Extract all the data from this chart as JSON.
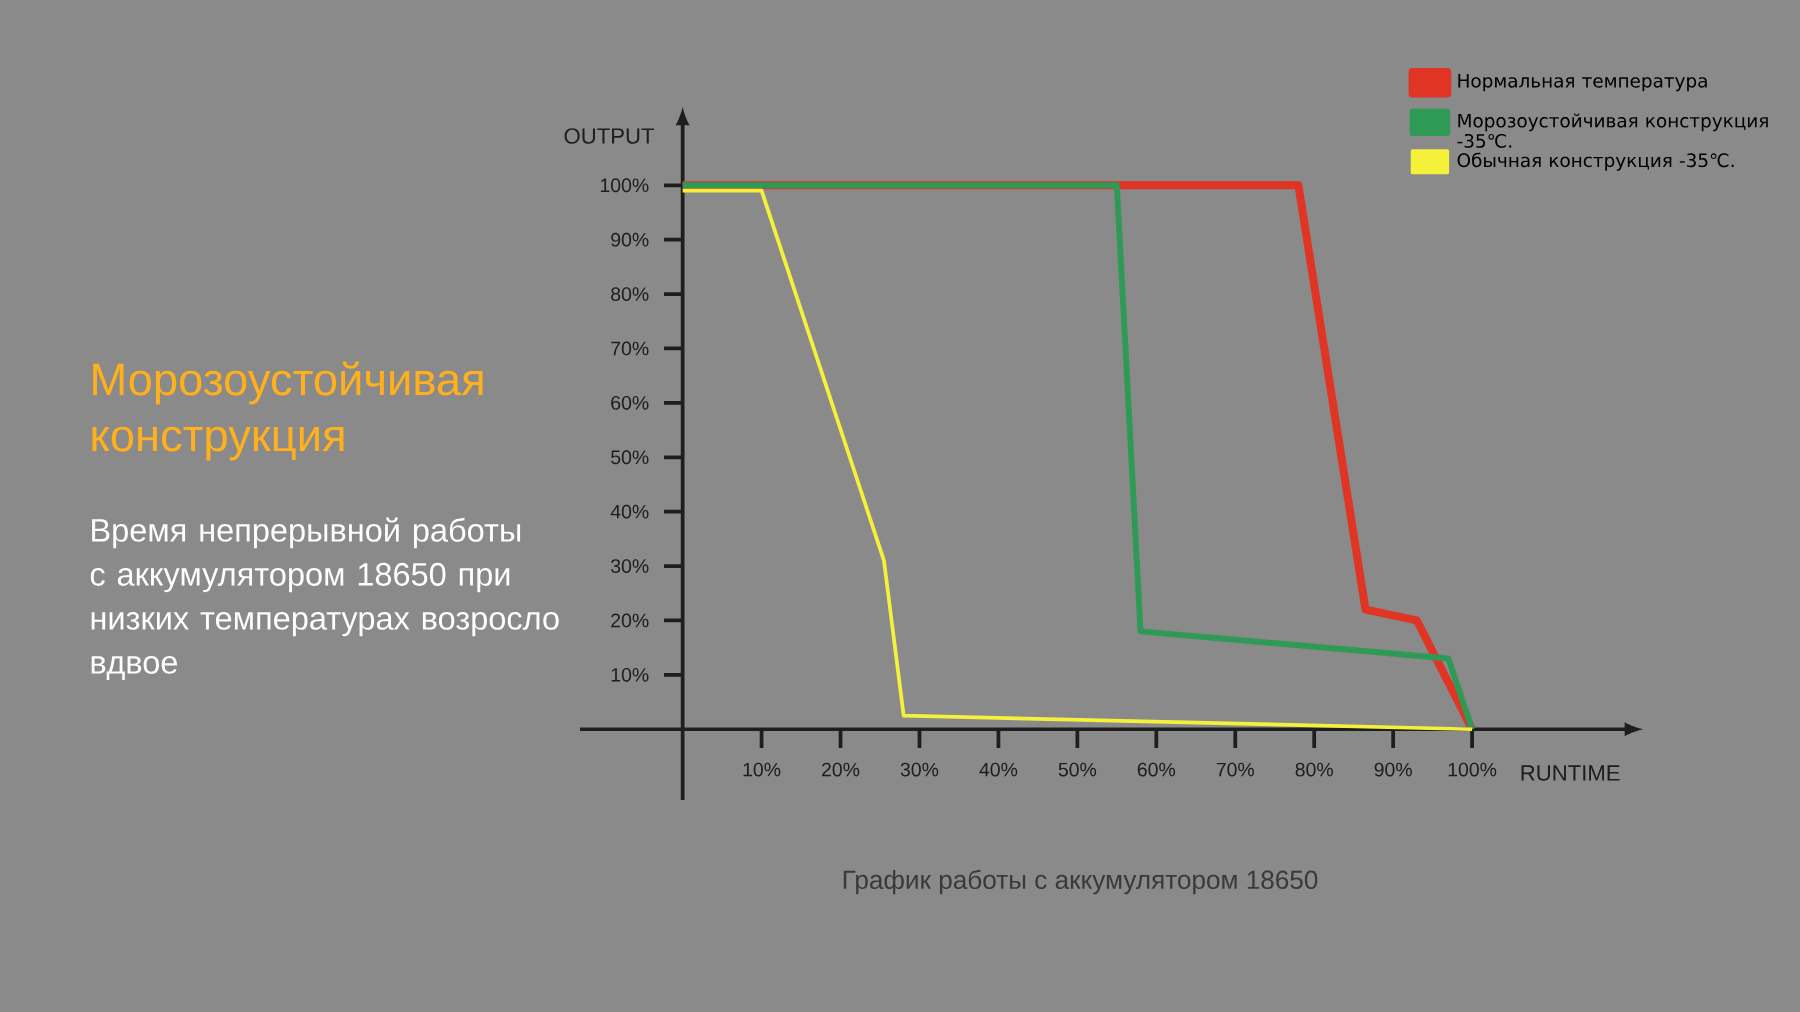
{
  "chart_data": {
    "type": "line",
    "title": "Морозоустойчивая конструкция",
    "subtitle": "Время непрерывной работы с аккумулятором 18650 при низких температурах возросло вдвое",
    "xlabel": "RUNTIME",
    "ylabel": "OUTPUT",
    "annotations": [
      "График работы с аккумулятором 18650"
    ],
    "xlim": [
      -13,
      120
    ],
    "ylim": [
      -13,
      112
    ],
    "xticks": [
      {
        "value": 10,
        "label": "10%"
      },
      {
        "value": 20,
        "label": "20%"
      },
      {
        "value": 30,
        "label": "30%"
      },
      {
        "value": 40,
        "label": "40%"
      },
      {
        "value": 50,
        "label": "50%"
      },
      {
        "value": 60,
        "label": "60%"
      },
      {
        "value": 70,
        "label": "70%"
      },
      {
        "value": 80,
        "label": "80%"
      },
      {
        "value": 90,
        "label": "90%"
      },
      {
        "value": 100,
        "label": "100%"
      }
    ],
    "yticks": [
      {
        "value": 10,
        "label": "10%"
      },
      {
        "value": 20,
        "label": "20%"
      },
      {
        "value": 30,
        "label": "30%"
      },
      {
        "value": 40,
        "label": "40%"
      },
      {
        "value": 50,
        "label": "50%"
      },
      {
        "value": 60,
        "label": "60%"
      },
      {
        "value": 70,
        "label": "70%"
      },
      {
        "value": 80,
        "label": "80%"
      },
      {
        "value": 90,
        "label": "90%"
      },
      {
        "value": 100,
        "label": "100%"
      }
    ],
    "legend": "top right",
    "line_style": "solid",
    "series": [
      {
        "name": "Нормальная температура",
        "color": "#e03524",
        "x": [
          0,
          78,
          86.5,
          93,
          100
        ],
        "values": [
          100,
          100,
          22,
          20,
          0
        ]
      },
      {
        "name": "Морозоустойчивая конструкция -35℃.",
        "color": "#2e9a55",
        "x": [
          0,
          55,
          58,
          97,
          100
        ],
        "values": [
          100,
          100,
          18,
          13,
          0
        ]
      },
      {
        "name": "Обычная конструкция -35℃.",
        "color": "#f5f03a",
        "x": [
          0,
          10,
          25.5,
          28,
          100
        ],
        "values": [
          99,
          99,
          31,
          2.5,
          0
        ]
      }
    ]
  }
}
